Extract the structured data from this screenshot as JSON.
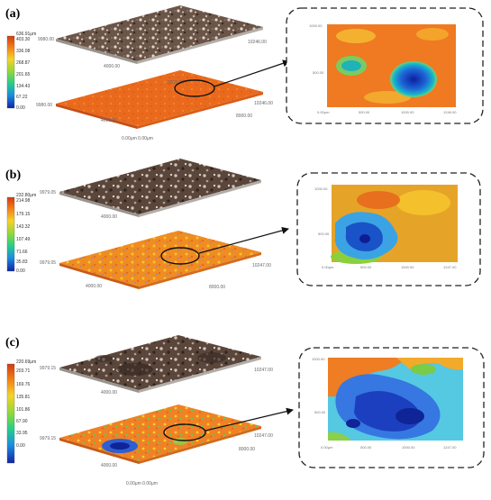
{
  "figure": {
    "panels": [
      {
        "label": "(a)",
        "colorbar": {
          "top": "636.91μm",
          "ticks": [
            "403.30",
            "336.08",
            "268.87",
            "201.65",
            "134.43",
            "67.22",
            "0.00"
          ]
        },
        "upper_axis": {
          "left": "9980.00",
          "right": "10246.00",
          "bottom": "4000.00"
        },
        "lower_axis": {
          "left": "9980.00",
          "right": "10246.00",
          "bottom": "4000.00",
          "foot": "0.00μm 0.00μm",
          "far": "8000.00",
          "corner": "2000.00"
        },
        "zoom_axis": {
          "left_top": "1000.00",
          "left_mid": "500.00",
          "bottom_left": "0.00μm",
          "bottom_mid1": "500.00",
          "bottom_mid2": "1000.00",
          "bottom_right": "1246.00"
        }
      },
      {
        "label": "(b)",
        "colorbar": {
          "top": "232.80μm",
          "ticks": [
            "214.98",
            "179.15",
            "143.32",
            "107.49",
            "71.66",
            "35.83",
            "0.00"
          ]
        },
        "upper_axis": {
          "left": "9979.05",
          "right": "10247.00",
          "bottom": "4000.00"
        },
        "lower_axis": {
          "left": "9979.05",
          "right": "10247.00",
          "bottom": "4000.00",
          "far": "8000.00"
        },
        "zoom_axis": {
          "left_top": "1000.00",
          "left_mid": "500.00",
          "bottom_left": "0.00μm",
          "bottom_mid1": "500.00",
          "bottom_mid2": "1000.00",
          "bottom_right": "1247.00"
        }
      },
      {
        "label": "(c)",
        "colorbar": {
          "top": "220.69μm",
          "ticks": [
            "203.71",
            "169.76",
            "135.81",
            "101.86",
            "67.90",
            "33.95",
            "0.00"
          ]
        },
        "upper_axis": {
          "left": "9979.15",
          "right": "10247.00",
          "bottom": "4000.00"
        },
        "lower_axis": {
          "left": "9979.15",
          "right": "10247.00",
          "bottom": "4000.00",
          "foot": "0.00μm 0.00μm",
          "far": "8000.00"
        },
        "zoom_axis": {
          "left_top": "1000.00",
          "left_mid": "500.00",
          "bottom_left": "0.00μm",
          "bottom_mid1": "500.00",
          "bottom_mid2": "1000.00",
          "bottom_right": "1247.00"
        }
      }
    ]
  }
}
